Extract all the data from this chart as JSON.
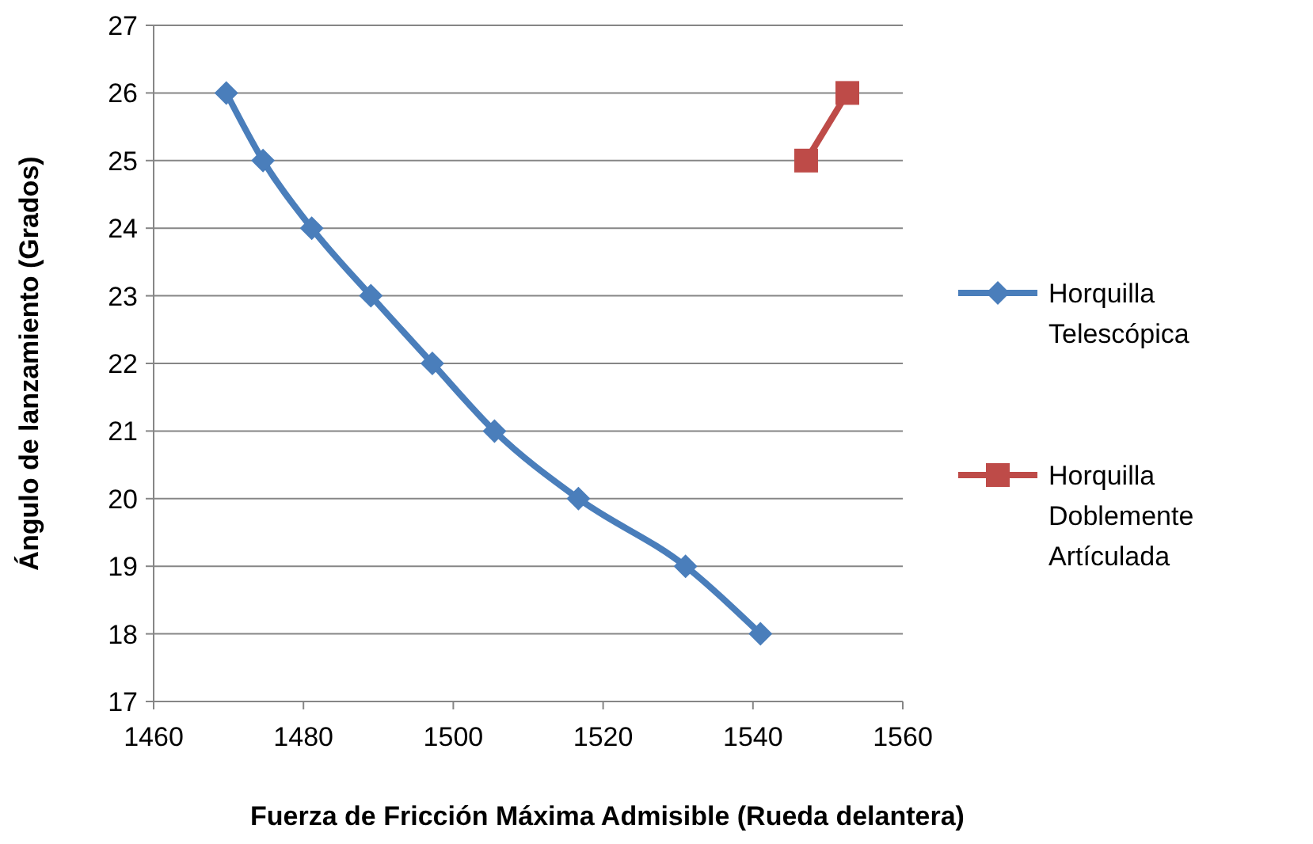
{
  "chart_data": {
    "type": "line",
    "xlabel": "Fuerza de Fricción  Máxima  Admisible  (Rueda delantera)",
    "ylabel": "Ángulo de lanzamiento  (Grados)",
    "xlim": [
      1460,
      1560
    ],
    "xticks": [
      1460,
      1480,
      1500,
      1520,
      1540,
      1560
    ],
    "ylim": [
      17,
      27
    ],
    "yticks": [
      17,
      18,
      19,
      20,
      21,
      22,
      23,
      24,
      25,
      26,
      27
    ],
    "grid": "y",
    "legend": "right",
    "series": [
      {
        "name": "Horquilla Telescópica",
        "color": "#4a7ebb",
        "marker": "diamond",
        "x": [
          1469.7,
          1474.6,
          1481.1,
          1489,
          1497.2,
          1505.5,
          1516.7,
          1531,
          1541
        ],
        "values": [
          26,
          25,
          24,
          23,
          22,
          21,
          20,
          19,
          18
        ]
      },
      {
        "name": "Horquilla Doblemente Artículada",
        "color": "#be4b48",
        "marker": "square",
        "x": [
          1547.1,
          1552.6
        ],
        "values": [
          25,
          26
        ]
      }
    ]
  }
}
